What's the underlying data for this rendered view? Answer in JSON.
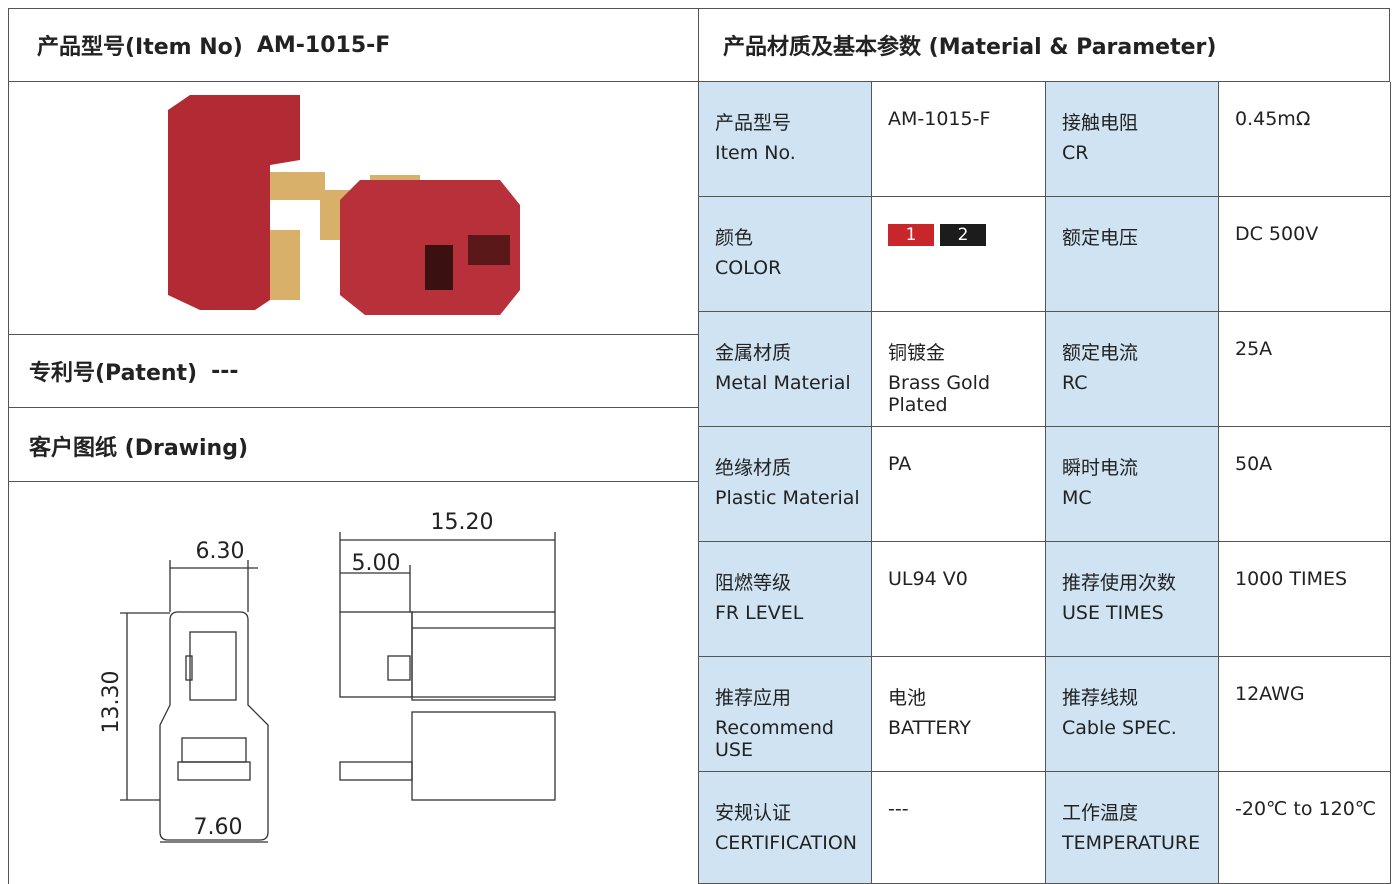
{
  "item_header": {
    "label": "产品型号(Item No)",
    "value": "AM-1015-F"
  },
  "patent": {
    "label": "专利号(Patent)",
    "value": "---"
  },
  "drawing": {
    "title": "客户图纸 (Drawing)",
    "dimensions": {
      "top_width": "6.30",
      "offset": "5.00",
      "length": "15.20",
      "height": "13.30",
      "bottom_width": "7.60"
    }
  },
  "parameters": {
    "title": "产品材质及基本参数 (Material & Parameter)",
    "rows": [
      [
        {
          "lines": [
            "产品型号",
            "Item No."
          ]
        },
        {
          "lines": [
            "AM-1015-F"
          ]
        },
        {
          "lines": [
            "接触电阻",
            "CR"
          ]
        },
        {
          "lines": [
            "0.45mΩ"
          ]
        }
      ],
      [
        {
          "lines": [
            "颜色",
            "COLOR"
          ]
        },
        {
          "swatches": [
            {
              "label": "1",
              "color": "#c8262a"
            },
            {
              "label": "2",
              "color": "#1c1c1c"
            }
          ]
        },
        {
          "lines": [
            "额定电压"
          ]
        },
        {
          "lines": [
            "DC 500V"
          ]
        }
      ],
      [
        {
          "lines": [
            "金属材质",
            "Metal Material"
          ]
        },
        {
          "lines": [
            "铜镀金",
            "Brass Gold Plated"
          ]
        },
        {
          "lines": [
            "额定电流",
            "RC"
          ]
        },
        {
          "lines": [
            "25A"
          ]
        }
      ],
      [
        {
          "lines": [
            "绝缘材质",
            "Plastic Material"
          ]
        },
        {
          "lines": [
            "PA"
          ]
        },
        {
          "lines": [
            "瞬时电流",
            "MC"
          ]
        },
        {
          "lines": [
            "50A"
          ]
        }
      ],
      [
        {
          "lines": [
            "阻燃等级",
            "FR LEVEL"
          ]
        },
        {
          "lines": [
            "UL94 V0"
          ]
        },
        {
          "lines": [
            "推荐使用次数",
            "USE TIMES"
          ]
        },
        {
          "lines": [
            "1000 TIMES"
          ]
        }
      ],
      [
        {
          "lines": [
            "推荐应用",
            "Recommend USE"
          ]
        },
        {
          "lines": [
            "电池",
            "BATTERY"
          ]
        },
        {
          "lines": [
            "推荐线规",
            "Cable SPEC."
          ]
        },
        {
          "lines": [
            "12AWG"
          ]
        }
      ],
      [
        {
          "lines": [
            "安规认证",
            "CERTIFICATION"
          ]
        },
        {
          "lines": [
            "---"
          ]
        },
        {
          "lines": [
            "工作温度",
            "TEMPERATURE"
          ]
        },
        {
          "lines": [
            "-20℃ to 120℃"
          ]
        }
      ]
    ]
  }
}
